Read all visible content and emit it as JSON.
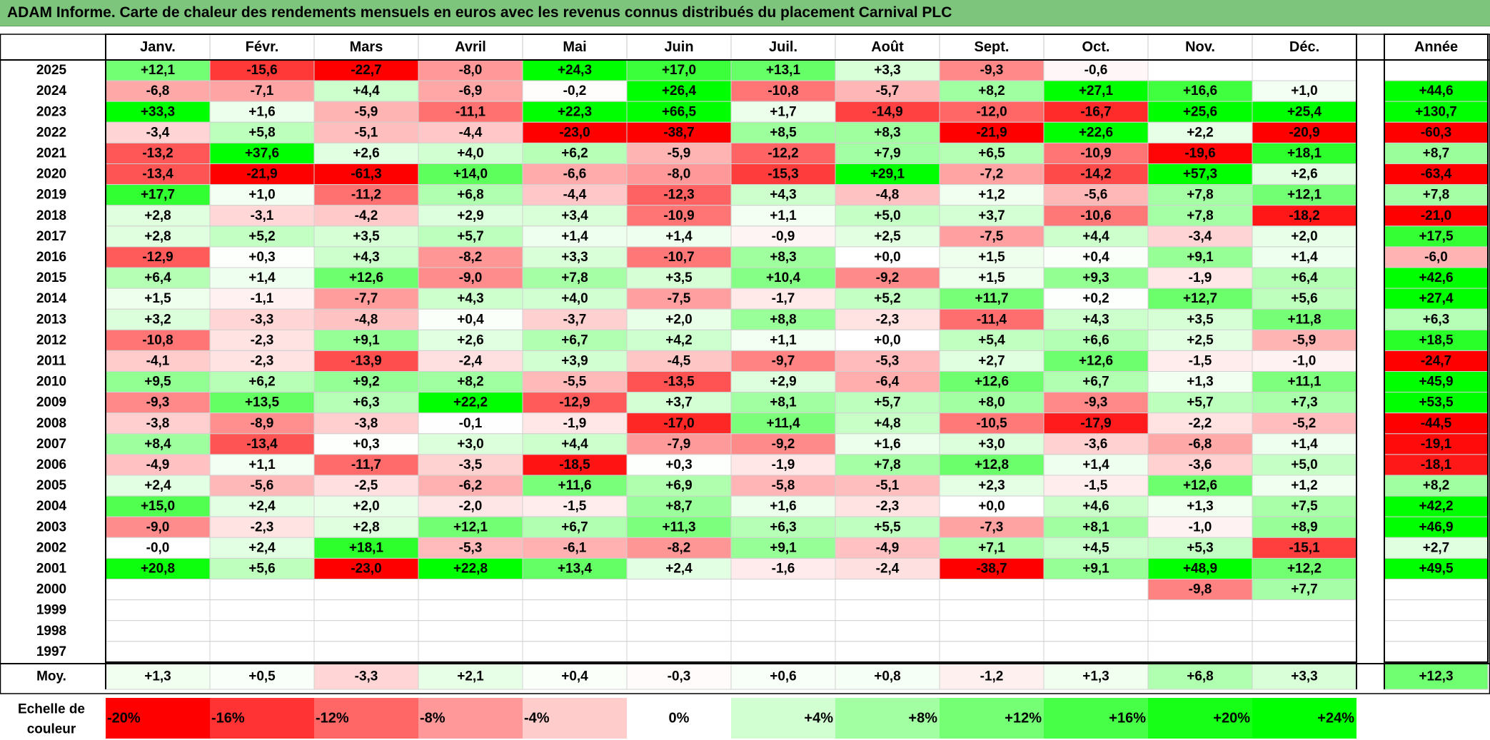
{
  "title": "ADAM Informe. Carte de chaleur des rendements mensuels en euros avec les revenus connus distribués du placement Carnival PLC",
  "chart_data": {
    "type": "heatmap",
    "months": [
      "Janv.",
      "Févr.",
      "Mars",
      "Avril",
      "Mai",
      "Juin",
      "Juil.",
      "Août",
      "Sept.",
      "Oct.",
      "Nov.",
      "Déc."
    ],
    "year_header": "Année",
    "years": [
      "2025",
      "2024",
      "2023",
      "2022",
      "2021",
      "2020",
      "2019",
      "2018",
      "2017",
      "2016",
      "2015",
      "2014",
      "2013",
      "2012",
      "2011",
      "2010",
      "2009",
      "2008",
      "2007",
      "2006",
      "2005",
      "2004",
      "2003",
      "2002",
      "2001",
      "2000",
      "1999",
      "1998",
      "1997"
    ],
    "values": [
      [
        "+12,1",
        "-15,6",
        "-22,7",
        "-8,0",
        "+24,3",
        "+17,0",
        "+13,1",
        "+3,3",
        "-9,3",
        "-0,6",
        "",
        ""
      ],
      [
        "-6,8",
        "-7,1",
        "+4,4",
        "-6,9",
        "-0,2",
        "+26,4",
        "-10,8",
        "-5,7",
        "+8,2",
        "+27,1",
        "+16,6",
        "+1,0"
      ],
      [
        "+33,3",
        "+1,6",
        "-5,9",
        "-11,1",
        "+22,3",
        "+66,5",
        "+1,7",
        "-14,9",
        "-12,0",
        "-16,7",
        "+25,6",
        "+25,4"
      ],
      [
        "-3,4",
        "+5,8",
        "-5,1",
        "-4,4",
        "-23,0",
        "-38,7",
        "+8,5",
        "+8,3",
        "-21,9",
        "+22,6",
        "+2,2",
        "-20,9"
      ],
      [
        "-13,2",
        "+37,6",
        "+2,6",
        "+4,0",
        "+6,2",
        "-5,9",
        "-12,2",
        "+7,9",
        "+6,5",
        "-10,9",
        "-19,6",
        "+18,1"
      ],
      [
        "-13,4",
        "-21,9",
        "-61,3",
        "+14,0",
        "-6,6",
        "-8,0",
        "-15,3",
        "+29,1",
        "-7,2",
        "-14,2",
        "+57,3",
        "+2,6"
      ],
      [
        "+17,7",
        "+1,0",
        "-11,2",
        "+6,8",
        "-4,4",
        "-12,3",
        "+4,3",
        "-4,8",
        "+1,2",
        "-5,6",
        "+7,8",
        "+12,1"
      ],
      [
        "+2,8",
        "-3,1",
        "-4,2",
        "+2,9",
        "+3,4",
        "-10,9",
        "+1,1",
        "+5,0",
        "+3,7",
        "-10,6",
        "+7,8",
        "-18,2"
      ],
      [
        "+2,8",
        "+5,2",
        "+3,5",
        "+5,7",
        "+1,4",
        "+1,4",
        "-0,9",
        "+2,5",
        "-7,5",
        "+4,4",
        "-3,4",
        "+2,0"
      ],
      [
        "-12,9",
        "+0,3",
        "+4,3",
        "-8,2",
        "+3,3",
        "-10,7",
        "+8,3",
        "+0,0",
        "+1,5",
        "+0,4",
        "+9,1",
        "+1,4"
      ],
      [
        "+6,4",
        "+1,4",
        "+12,6",
        "-9,0",
        "+7,8",
        "+3,5",
        "+10,4",
        "-9,2",
        "+1,5",
        "+9,3",
        "-1,9",
        "+6,4"
      ],
      [
        "+1,5",
        "-1,1",
        "-7,7",
        "+4,3",
        "+4,0",
        "-7,5",
        "-1,7",
        "+5,2",
        "+11,7",
        "+0,2",
        "+12,7",
        "+5,6"
      ],
      [
        "+3,2",
        "-3,3",
        "-4,8",
        "+0,4",
        "-3,7",
        "+2,0",
        "+8,8",
        "-2,3",
        "-11,4",
        "+4,3",
        "+3,5",
        "+11,8"
      ],
      [
        "-10,8",
        "-2,3",
        "+9,1",
        "+2,6",
        "+6,7",
        "+4,2",
        "+1,1",
        "+0,0",
        "+5,4",
        "+6,6",
        "+2,5",
        "-5,9"
      ],
      [
        "-4,1",
        "-2,3",
        "-13,9",
        "-2,4",
        "+3,9",
        "-4,5",
        "-9,7",
        "-5,3",
        "+2,7",
        "+12,6",
        "-1,5",
        "-1,0"
      ],
      [
        "+9,5",
        "+6,2",
        "+9,2",
        "+8,2",
        "-5,5",
        "-13,5",
        "+2,9",
        "-6,4",
        "+12,6",
        "+6,7",
        "+1,3",
        "+11,1"
      ],
      [
        "-9,3",
        "+13,5",
        "+6,3",
        "+22,2",
        "-12,9",
        "+3,7",
        "+8,1",
        "+5,7",
        "+8,0",
        "-9,3",
        "+5,7",
        "+7,3"
      ],
      [
        "-3,8",
        "-8,9",
        "-3,8",
        "-0,1",
        "-1,9",
        "-17,0",
        "+11,4",
        "+4,8",
        "-10,5",
        "-17,9",
        "-2,2",
        "-5,2"
      ],
      [
        "+8,4",
        "-13,4",
        "+0,3",
        "+3,0",
        "+4,4",
        "-7,9",
        "-9,2",
        "+1,6",
        "+3,0",
        "-3,6",
        "-6,8",
        "+1,4"
      ],
      [
        "-4,9",
        "+1,1",
        "-11,7",
        "-3,5",
        "-18,5",
        "+0,3",
        "-1,9",
        "+7,8",
        "+12,8",
        "+1,4",
        "-3,6",
        "+5,0"
      ],
      [
        "+2,4",
        "-5,6",
        "-2,5",
        "-6,2",
        "+11,6",
        "+6,9",
        "-5,8",
        "-5,1",
        "+2,3",
        "-1,5",
        "+12,6",
        "+1,2"
      ],
      [
        "+15,0",
        "+2,4",
        "+2,0",
        "-2,0",
        "-1,5",
        "+8,7",
        "+1,6",
        "-2,3",
        "+0,0",
        "+4,6",
        "+1,3",
        "+7,5"
      ],
      [
        "-9,0",
        "-2,3",
        "+2,8",
        "+12,1",
        "+6,7",
        "+11,3",
        "+6,3",
        "+5,5",
        "-7,3",
        "+8,1",
        "-1,0",
        "+8,9"
      ],
      [
        "-0,0",
        "+2,4",
        "+18,1",
        "-5,3",
        "-6,1",
        "-8,2",
        "+9,1",
        "-4,9",
        "+7,1",
        "+4,5",
        "+5,3",
        "-15,1"
      ],
      [
        "+20,8",
        "+5,6",
        "-23,0",
        "+22,8",
        "+13,4",
        "+2,4",
        "-1,6",
        "-2,4",
        "-38,7",
        "+9,1",
        "+48,9",
        "+12,2"
      ],
      [
        "",
        "",
        "",
        "",
        "",
        "",
        "",
        "",
        "",
        "",
        "-9,8",
        "+7,7"
      ],
      [
        "",
        "",
        "",
        "",
        "",
        "",
        "",
        "",
        "",
        "",
        "",
        ""
      ],
      [
        "",
        "",
        "",
        "",
        "",
        "",
        "",
        "",
        "",
        "",
        "",
        ""
      ],
      [
        "",
        "",
        "",
        "",
        "",
        "",
        "",
        "",
        "",
        "",
        "",
        ""
      ]
    ],
    "annual": [
      "",
      "+44,6",
      "+130,7",
      "-60,3",
      "+8,7",
      "-63,4",
      "+7,8",
      "-21,0",
      "+17,5",
      "-6,0",
      "+42,6",
      "+27,4",
      "+6,3",
      "+18,5",
      "-24,7",
      "+45,9",
      "+53,5",
      "-44,5",
      "-19,1",
      "-18,1",
      "+8,2",
      "+42,2",
      "+46,9",
      "+2,7",
      "+49,5",
      "",
      "",
      "",
      ""
    ],
    "average_label": "Moy.",
    "averages": [
      "+1,3",
      "+0,5",
      "-3,3",
      "+2,1",
      "+0,4",
      "-0,3",
      "+0,6",
      "+0,8",
      "-1,2",
      "+1,3",
      "+6,8",
      "+3,3"
    ],
    "average_annual": "+12,3",
    "scale_label": [
      "Echelle de",
      "couleur"
    ],
    "scale": [
      {
        "label": "-20%",
        "value": -20
      },
      {
        "label": "-16%",
        "value": -16
      },
      {
        "label": "-12%",
        "value": -12
      },
      {
        "label": "-8%",
        "value": -8
      },
      {
        "label": "-4%",
        "value": -4
      },
      {
        "label": "0%",
        "value": 0
      },
      {
        "label": "+4%",
        "value": 4
      },
      {
        "label": "+8%",
        "value": 8
      },
      {
        "label": "+12%",
        "value": 12
      },
      {
        "label": "+16%",
        "value": 16
      },
      {
        "label": "+20%",
        "value": 20
      },
      {
        "label": "+24%",
        "value": 24
      }
    ],
    "colors": {
      "negative_max": "#ff0000",
      "neutral": "#ffffff",
      "positive_max": "#00ff00"
    }
  }
}
